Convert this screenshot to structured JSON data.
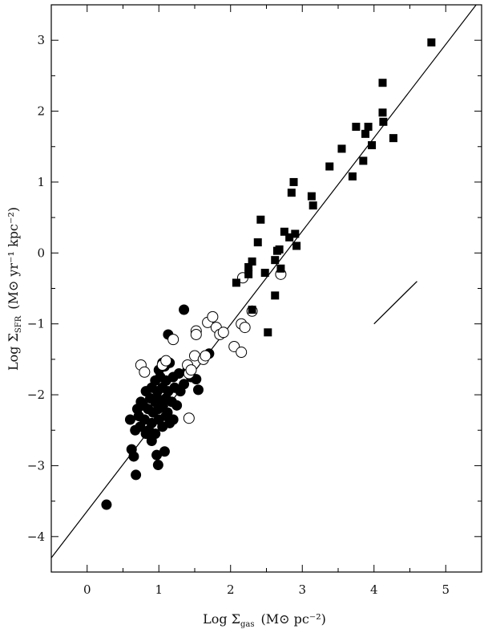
{
  "chart_data": {
    "type": "scatter",
    "title": "",
    "xlabel": {
      "prefix": "Log Σ",
      "sub": "gas",
      "units": "(M⊙ pc⁻²)"
    },
    "ylabel": {
      "prefix": "Log Σ",
      "sub": "SFR",
      "units": "(M⊙ yr⁻¹ kpc⁻²)"
    },
    "xlim": [
      -0.5,
      5.5
    ],
    "ylim": [
      -4.5,
      3.5
    ],
    "xticks": [
      0,
      1,
      2,
      3,
      4,
      5
    ],
    "yticks": [
      -4,
      -3,
      -2,
      -1,
      0,
      1,
      2,
      3
    ],
    "grid": false,
    "series": [
      {
        "marker": "filled-circle",
        "points": [
          [
            0.27,
            -3.55
          ],
          [
            0.68,
            -3.13
          ],
          [
            0.99,
            -2.99
          ],
          [
            1.08,
            -2.8
          ],
          [
            0.62,
            -2.77
          ],
          [
            0.65,
            -2.87
          ],
          [
            0.97,
            -2.85
          ],
          [
            0.9,
            -2.65
          ],
          [
            0.82,
            -2.55
          ],
          [
            0.74,
            -2.45
          ],
          [
            0.86,
            -2.5
          ],
          [
            0.95,
            -2.55
          ],
          [
            1.05,
            -2.45
          ],
          [
            0.67,
            -2.5
          ],
          [
            0.6,
            -2.35
          ],
          [
            0.72,
            -2.3
          ],
          [
            0.8,
            -2.35
          ],
          [
            0.9,
            -2.4
          ],
          [
            1.0,
            -2.35
          ],
          [
            1.1,
            -2.3
          ],
          [
            1.15,
            -2.4
          ],
          [
            1.2,
            -2.35
          ],
          [
            0.7,
            -2.2
          ],
          [
            0.78,
            -2.15
          ],
          [
            0.85,
            -2.2
          ],
          [
            0.92,
            -2.25
          ],
          [
            0.99,
            -2.2
          ],
          [
            1.05,
            -2.15
          ],
          [
            1.12,
            -2.25
          ],
          [
            0.75,
            -2.1
          ],
          [
            0.88,
            -2.05
          ],
          [
            0.95,
            -2.08
          ],
          [
            1.02,
            -2.1
          ],
          [
            1.1,
            -2.05
          ],
          [
            1.18,
            -2.1
          ],
          [
            1.25,
            -2.15
          ],
          [
            0.82,
            -1.95
          ],
          [
            0.9,
            -1.9
          ],
          [
            0.98,
            -1.95
          ],
          [
            1.05,
            -1.9
          ],
          [
            1.13,
            -1.95
          ],
          [
            1.22,
            -1.9
          ],
          [
            1.3,
            -1.95
          ],
          [
            1.35,
            -1.85
          ],
          [
            0.95,
            -1.8
          ],
          [
            1.02,
            -1.75
          ],
          [
            1.1,
            -1.8
          ],
          [
            1.2,
            -1.75
          ],
          [
            1.28,
            -1.7
          ],
          [
            1.0,
            -1.65
          ],
          [
            1.08,
            -1.6
          ],
          [
            1.15,
            -1.55
          ],
          [
            1.05,
            -1.55
          ],
          [
            1.45,
            -1.75
          ],
          [
            1.52,
            -1.78
          ],
          [
            1.55,
            -1.93
          ],
          [
            1.4,
            -1.65
          ],
          [
            1.7,
            -1.42
          ],
          [
            1.13,
            -1.15
          ],
          [
            1.35,
            -0.8
          ],
          [
            0.95,
            -2.1
          ],
          [
            0.98,
            -2.05
          ]
        ]
      },
      {
        "marker": "open-circle",
        "points": [
          [
            0.75,
            -1.58
          ],
          [
            0.8,
            -1.68
          ],
          [
            1.05,
            -1.58
          ],
          [
            1.1,
            -1.52
          ],
          [
            1.2,
            -1.22
          ],
          [
            1.4,
            -1.58
          ],
          [
            1.42,
            -1.7
          ],
          [
            1.45,
            -1.65
          ],
          [
            1.5,
            -1.45
          ],
          [
            1.52,
            -1.1
          ],
          [
            1.52,
            -1.15
          ],
          [
            1.62,
            -1.5
          ],
          [
            1.65,
            -1.45
          ],
          [
            1.68,
            -0.98
          ],
          [
            1.75,
            -0.9
          ],
          [
            1.8,
            -1.05
          ],
          [
            1.85,
            -1.15
          ],
          [
            1.9,
            -1.12
          ],
          [
            2.05,
            -1.32
          ],
          [
            2.15,
            -1.4
          ],
          [
            2.15,
            -1.0
          ],
          [
            2.2,
            -1.05
          ],
          [
            2.17,
            -0.35
          ],
          [
            2.3,
            -0.82
          ],
          [
            2.7,
            -0.3
          ],
          [
            1.42,
            -2.33
          ]
        ]
      },
      {
        "marker": "filled-square",
        "points": [
          [
            2.08,
            -0.42
          ],
          [
            2.25,
            -0.3
          ],
          [
            2.25,
            -0.2
          ],
          [
            2.3,
            -0.12
          ],
          [
            2.3,
            -0.8
          ],
          [
            2.38,
            0.15
          ],
          [
            2.42,
            0.47
          ],
          [
            2.48,
            -0.28
          ],
          [
            2.52,
            -1.12
          ],
          [
            2.62,
            -0.1
          ],
          [
            2.62,
            -0.6
          ],
          [
            2.65,
            0.03
          ],
          [
            2.68,
            0.05
          ],
          [
            2.7,
            -0.22
          ],
          [
            2.75,
            0.3
          ],
          [
            2.82,
            0.22
          ],
          [
            2.85,
            0.85
          ],
          [
            2.88,
            1.0
          ],
          [
            2.9,
            0.27
          ],
          [
            2.92,
            0.1
          ],
          [
            3.13,
            0.8
          ],
          [
            3.15,
            0.67
          ],
          [
            3.38,
            1.22
          ],
          [
            3.55,
            1.47
          ],
          [
            3.7,
            1.08
          ],
          [
            3.75,
            1.78
          ],
          [
            3.85,
            1.3
          ],
          [
            3.88,
            1.68
          ],
          [
            3.92,
            1.78
          ],
          [
            3.97,
            1.52
          ],
          [
            4.12,
            1.98
          ],
          [
            4.12,
            2.4
          ],
          [
            4.13,
            1.85
          ],
          [
            4.27,
            1.62
          ],
          [
            4.8,
            2.97
          ]
        ]
      }
    ],
    "fit_line": {
      "x": [
        -0.5,
        5.5
      ],
      "y": [
        -4.3,
        3.6
      ]
    },
    "slope_segment": {
      "x": [
        4.0,
        4.6
      ],
      "y": [
        -1.0,
        -0.4
      ]
    }
  }
}
